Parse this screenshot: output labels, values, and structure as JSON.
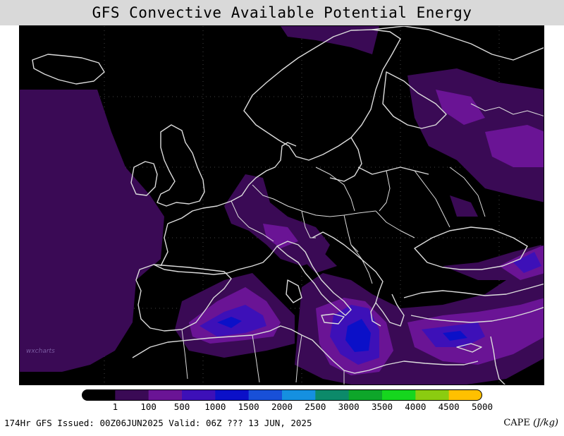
{
  "title": "GFS Convective Available Potential Energy",
  "colorbar": {
    "labels": [
      "1",
      "100",
      "500",
      "1000",
      "1500",
      "2000",
      "2500",
      "3000",
      "3500",
      "4000",
      "4500",
      "5000"
    ],
    "colors": [
      "#000000",
      "#3a0a55",
      "#6a1495",
      "#3d10b8",
      "#0b10c8",
      "#1850d8",
      "#1590e0",
      "#0c8a6a",
      "#0ea62a",
      "#16d61e",
      "#8bcc10",
      "#ffc000"
    ]
  },
  "footer": {
    "left": "174Hr GFS Issued: 00Z06JUN2025 Valid: 06Z ??? 13 JUN, 2025",
    "right_label": "CAPE",
    "right_units": "(J/kg)"
  },
  "watermark": "wxcharts",
  "map": {
    "background": "#000000",
    "coastline_color": "#dcdcdc",
    "cape_colors": {
      "low": "#3a0a55",
      "mid": "#6a1495",
      "high": "#3d10b8",
      "peak": "#0b10c8"
    }
  }
}
